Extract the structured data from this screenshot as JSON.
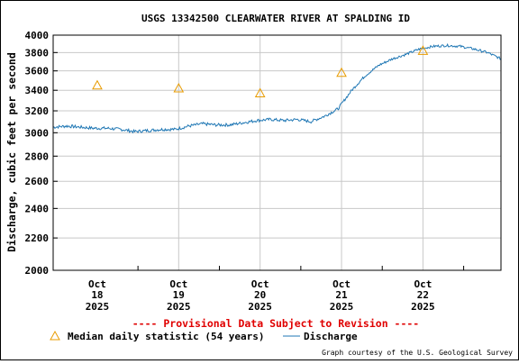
{
  "chart_data": {
    "type": "line",
    "title": "USGS 13342500 CLEARWATER RIVER AT SPALDING ID",
    "ylabel": "Discharge, cubic feet per second",
    "xlabel": "",
    "y_scale": "log",
    "ylim": [
      2000,
      4000
    ],
    "y_ticks": [
      2000,
      2200,
      2400,
      2600,
      2800,
      3000,
      3200,
      3400,
      3600,
      3800,
      4000
    ],
    "x_ticks": [
      {
        "month": "Oct",
        "day": "18",
        "year": "2025"
      },
      {
        "month": "Oct",
        "day": "19",
        "year": "2025"
      },
      {
        "month": "Oct",
        "day": "20",
        "year": "2025"
      },
      {
        "month": "Oct",
        "day": "21",
        "year": "2025"
      },
      {
        "month": "Oct",
        "day": "22",
        "year": "2025"
      }
    ],
    "xlim": [
      "2025-10-17 11:00",
      "2025-10-22 23:00"
    ],
    "grid": true,
    "series": [
      {
        "name": "Discharge",
        "color": "#1f77b4",
        "points": [
          [
            "2025-10-17 11:00",
            3050
          ],
          [
            "2025-10-17 15:00",
            3060
          ],
          [
            "2025-10-17 19:00",
            3050
          ],
          [
            "2025-10-17 23:00",
            3040
          ],
          [
            "2025-10-18 03:00",
            3040
          ],
          [
            "2025-10-18 07:00",
            3030
          ],
          [
            "2025-10-18 11:00",
            3010
          ],
          [
            "2025-10-18 15:00",
            3020
          ],
          [
            "2025-10-18 19:00",
            3030
          ],
          [
            "2025-10-18 23:00",
            3030
          ],
          [
            "2025-10-19 03:00",
            3060
          ],
          [
            "2025-10-19 07:00",
            3080
          ],
          [
            "2025-10-19 11:00",
            3070
          ],
          [
            "2025-10-19 15:00",
            3070
          ],
          [
            "2025-10-19 19:00",
            3090
          ],
          [
            "2025-10-19 23:00",
            3110
          ],
          [
            "2025-10-20 03:00",
            3120
          ],
          [
            "2025-10-20 07:00",
            3110
          ],
          [
            "2025-10-20 11:00",
            3120
          ],
          [
            "2025-10-20 15:00",
            3100
          ],
          [
            "2025-10-20 19:00",
            3150
          ],
          [
            "2025-10-20 23:00",
            3220
          ],
          [
            "2025-10-21 03:00",
            3400
          ],
          [
            "2025-10-21 07:00",
            3550
          ],
          [
            "2025-10-21 11:00",
            3660
          ],
          [
            "2025-10-21 15:00",
            3730
          ],
          [
            "2025-10-21 19:00",
            3780
          ],
          [
            "2025-10-21 23:00",
            3840
          ],
          [
            "2025-10-22 03:00",
            3870
          ],
          [
            "2025-10-22 07:00",
            3880
          ],
          [
            "2025-10-22 11:00",
            3870
          ],
          [
            "2025-10-22 15:00",
            3840
          ],
          [
            "2025-10-22 19:00",
            3800
          ],
          [
            "2025-10-22 23:00",
            3730
          ]
        ]
      },
      {
        "name": "Median daily statistic (54 years)",
        "color": "#e89b00",
        "marker": "triangle",
        "points": [
          [
            "2025-10-18 00:00",
            3450
          ],
          [
            "2025-10-19 00:00",
            3420
          ],
          [
            "2025-10-20 00:00",
            3370
          ],
          [
            "2025-10-21 00:00",
            3580
          ],
          [
            "2025-10-22 00:00",
            3820
          ]
        ]
      }
    ]
  },
  "provisional": "---- Provisional Data Subject to Revision ----",
  "legend": {
    "median_label": "Median daily statistic (54 years)",
    "discharge_label": "Discharge"
  },
  "credit": "Graph courtesy of the U.S. Geological Survey"
}
